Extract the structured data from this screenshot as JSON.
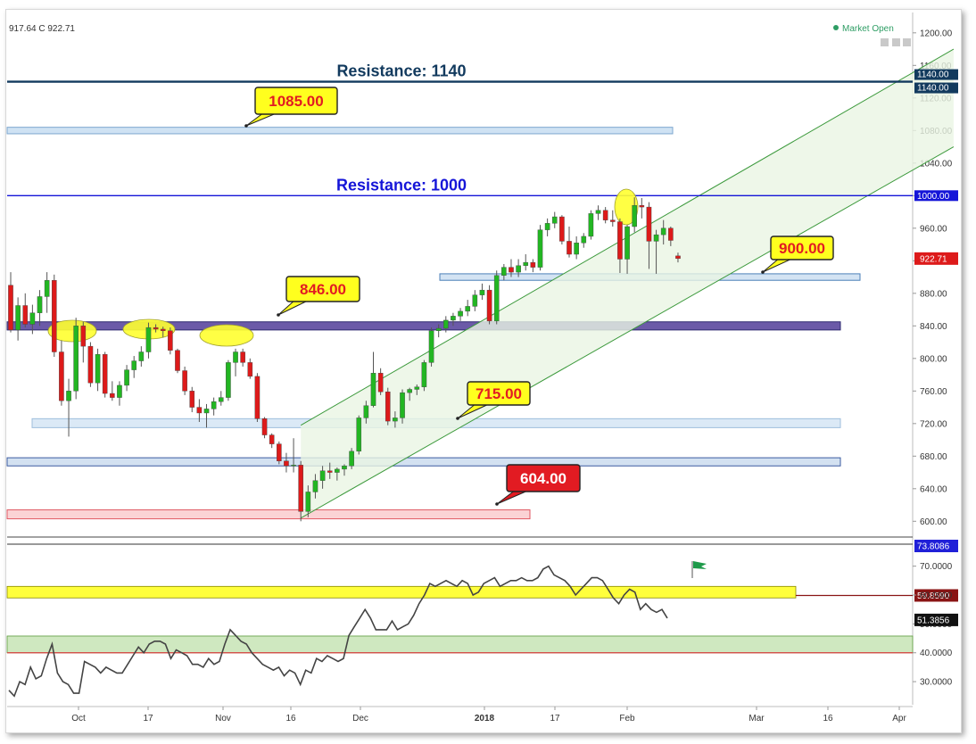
{
  "header": {
    "ohlc_text": "917.64 C 922.71",
    "market_status": "Market Open"
  },
  "colors": {
    "up": "#22b622",
    "down": "#dd1a1a",
    "resistance_1140": "#123a5e",
    "resistance_1000": "#1515d8",
    "channel": "#3d9a3d",
    "rsi_line": "#444444"
  },
  "chart_data": [
    {
      "type": "candlestick",
      "title": "",
      "price_axis": {
        "ticks": [
          "1200.00",
          "1160.00",
          "1120.00",
          "1080.00",
          "1040.00",
          "1000.00",
          "960.00",
          "920.00",
          "880.00",
          "840.00",
          "800.00",
          "760.00",
          "720.00",
          "680.00",
          "640.00",
          "600.00"
        ],
        "range": [
          585,
          1225
        ]
      },
      "x_axis": {
        "ticks": [
          "Oct",
          "17",
          "Nov",
          "16",
          "Dec",
          "2018",
          "17",
          "Feb",
          "Mar",
          "16",
          "Apr"
        ],
        "bold_ticks": [
          "2018"
        ]
      },
      "candles": [
        {
          "o": 890,
          "h": 906,
          "l": 832,
          "c": 835
        },
        {
          "o": 835,
          "h": 875,
          "l": 822,
          "c": 865
        },
        {
          "o": 865,
          "h": 880,
          "l": 838,
          "c": 842
        },
        {
          "o": 842,
          "h": 866,
          "l": 830,
          "c": 856
        },
        {
          "o": 856,
          "h": 884,
          "l": 840,
          "c": 876
        },
        {
          "o": 876,
          "h": 906,
          "l": 856,
          "c": 896
        },
        {
          "o": 896,
          "h": 903,
          "l": 802,
          "c": 808
        },
        {
          "o": 808,
          "h": 822,
          "l": 742,
          "c": 748
        },
        {
          "o": 748,
          "h": 775,
          "l": 704,
          "c": 760
        },
        {
          "o": 760,
          "h": 850,
          "l": 750,
          "c": 840
        },
        {
          "o": 840,
          "h": 845,
          "l": 795,
          "c": 815
        },
        {
          "o": 815,
          "h": 820,
          "l": 765,
          "c": 770
        },
        {
          "o": 770,
          "h": 812,
          "l": 760,
          "c": 805
        },
        {
          "o": 805,
          "h": 808,
          "l": 752,
          "c": 757
        },
        {
          "o": 757,
          "h": 772,
          "l": 748,
          "c": 752
        },
        {
          "o": 752,
          "h": 772,
          "l": 742,
          "c": 767
        },
        {
          "o": 767,
          "h": 792,
          "l": 760,
          "c": 786
        },
        {
          "o": 786,
          "h": 803,
          "l": 776,
          "c": 797
        },
        {
          "o": 797,
          "h": 815,
          "l": 790,
          "c": 808
        },
        {
          "o": 808,
          "h": 844,
          "l": 800,
          "c": 838
        },
        {
          "o": 838,
          "h": 842,
          "l": 832,
          "c": 836
        },
        {
          "o": 836,
          "h": 839,
          "l": 826,
          "c": 834
        },
        {
          "o": 834,
          "h": 838,
          "l": 805,
          "c": 810
        },
        {
          "o": 810,
          "h": 812,
          "l": 782,
          "c": 785
        },
        {
          "o": 785,
          "h": 790,
          "l": 755,
          "c": 760
        },
        {
          "o": 760,
          "h": 765,
          "l": 734,
          "c": 740
        },
        {
          "o": 740,
          "h": 750,
          "l": 722,
          "c": 733
        },
        {
          "o": 733,
          "h": 744,
          "l": 715,
          "c": 738
        },
        {
          "o": 738,
          "h": 752,
          "l": 730,
          "c": 747
        },
        {
          "o": 747,
          "h": 760,
          "l": 742,
          "c": 752
        },
        {
          "o": 752,
          "h": 798,
          "l": 748,
          "c": 795
        },
        {
          "o": 795,
          "h": 812,
          "l": 778,
          "c": 808
        },
        {
          "o": 808,
          "h": 812,
          "l": 790,
          "c": 795
        },
        {
          "o": 795,
          "h": 800,
          "l": 775,
          "c": 778
        },
        {
          "o": 778,
          "h": 782,
          "l": 722,
          "c": 726
        },
        {
          "o": 726,
          "h": 728,
          "l": 702,
          "c": 706
        },
        {
          "o": 706,
          "h": 708,
          "l": 690,
          "c": 695
        },
        {
          "o": 695,
          "h": 698,
          "l": 670,
          "c": 674
        },
        {
          "o": 674,
          "h": 684,
          "l": 660,
          "c": 668
        },
        {
          "o": 668,
          "h": 702,
          "l": 660,
          "c": 669
        },
        {
          "o": 669,
          "h": 674,
          "l": 600,
          "c": 612
        },
        {
          "o": 612,
          "h": 644,
          "l": 605,
          "c": 636
        },
        {
          "o": 636,
          "h": 658,
          "l": 628,
          "c": 650
        },
        {
          "o": 650,
          "h": 668,
          "l": 640,
          "c": 662
        },
        {
          "o": 662,
          "h": 672,
          "l": 652,
          "c": 660
        },
        {
          "o": 660,
          "h": 666,
          "l": 650,
          "c": 664
        },
        {
          "o": 664,
          "h": 670,
          "l": 656,
          "c": 668
        },
        {
          "o": 668,
          "h": 690,
          "l": 664,
          "c": 686
        },
        {
          "o": 686,
          "h": 730,
          "l": 682,
          "c": 727
        },
        {
          "o": 727,
          "h": 748,
          "l": 720,
          "c": 742
        },
        {
          "o": 742,
          "h": 808,
          "l": 740,
          "c": 782
        },
        {
          "o": 782,
          "h": 788,
          "l": 755,
          "c": 759
        },
        {
          "o": 759,
          "h": 764,
          "l": 718,
          "c": 723
        },
        {
          "o": 723,
          "h": 735,
          "l": 715,
          "c": 727
        },
        {
          "o": 727,
          "h": 762,
          "l": 720,
          "c": 758
        },
        {
          "o": 758,
          "h": 764,
          "l": 748,
          "c": 762
        },
        {
          "o": 762,
          "h": 768,
          "l": 755,
          "c": 765
        },
        {
          "o": 765,
          "h": 798,
          "l": 760,
          "c": 795
        },
        {
          "o": 795,
          "h": 838,
          "l": 790,
          "c": 834
        },
        {
          "o": 834,
          "h": 842,
          "l": 826,
          "c": 837
        },
        {
          "o": 837,
          "h": 852,
          "l": 832,
          "c": 847
        },
        {
          "o": 847,
          "h": 856,
          "l": 840,
          "c": 852
        },
        {
          "o": 852,
          "h": 862,
          "l": 846,
          "c": 858
        },
        {
          "o": 858,
          "h": 872,
          "l": 852,
          "c": 864
        },
        {
          "o": 864,
          "h": 884,
          "l": 858,
          "c": 878
        },
        {
          "o": 878,
          "h": 892,
          "l": 872,
          "c": 884
        },
        {
          "o": 884,
          "h": 890,
          "l": 842,
          "c": 846
        },
        {
          "o": 846,
          "h": 908,
          "l": 842,
          "c": 902
        },
        {
          "o": 902,
          "h": 916,
          "l": 896,
          "c": 912
        },
        {
          "o": 912,
          "h": 922,
          "l": 900,
          "c": 906
        },
        {
          "o": 906,
          "h": 922,
          "l": 900,
          "c": 914
        },
        {
          "o": 914,
          "h": 928,
          "l": 908,
          "c": 918
        },
        {
          "o": 918,
          "h": 922,
          "l": 906,
          "c": 912
        },
        {
          "o": 912,
          "h": 964,
          "l": 908,
          "c": 958
        },
        {
          "o": 958,
          "h": 972,
          "l": 950,
          "c": 966
        },
        {
          "o": 966,
          "h": 980,
          "l": 960,
          "c": 974
        },
        {
          "o": 974,
          "h": 976,
          "l": 940,
          "c": 944
        },
        {
          "o": 944,
          "h": 962,
          "l": 924,
          "c": 928
        },
        {
          "o": 928,
          "h": 950,
          "l": 922,
          "c": 942
        },
        {
          "o": 942,
          "h": 954,
          "l": 936,
          "c": 950
        },
        {
          "o": 950,
          "h": 982,
          "l": 946,
          "c": 978
        },
        {
          "o": 978,
          "h": 988,
          "l": 970,
          "c": 982
        },
        {
          "o": 982,
          "h": 986,
          "l": 966,
          "c": 970
        },
        {
          "o": 970,
          "h": 982,
          "l": 962,
          "c": 968
        },
        {
          "o": 968,
          "h": 972,
          "l": 905,
          "c": 922
        },
        {
          "o": 922,
          "h": 964,
          "l": 904,
          "c": 962
        },
        {
          "o": 962,
          "h": 998,
          "l": 955,
          "c": 988
        },
        {
          "o": 988,
          "h": 997,
          "l": 972,
          "c": 986
        },
        {
          "o": 986,
          "h": 992,
          "l": 910,
          "c": 944
        },
        {
          "o": 944,
          "h": 958,
          "l": 904,
          "c": 952
        },
        {
          "o": 952,
          "h": 970,
          "l": 940,
          "c": 960
        },
        {
          "o": 960,
          "h": 962,
          "l": 938,
          "c": 945
        },
        {
          "o": 926,
          "h": 930,
          "l": 918,
          "c": 922.71
        }
      ],
      "last_price": "922.71",
      "resistance_lines": [
        {
          "label": "Resistance: 1140",
          "value": 1140,
          "tags": [
            "1140.00",
            "1140.00"
          ]
        },
        {
          "label": "Resistance: 1000",
          "value": 1000,
          "tag": "1000.00"
        }
      ],
      "zones": [
        {
          "low": 1076,
          "high": 1084
        },
        {
          "low": 896,
          "high": 904
        },
        {
          "low": 835,
          "high": 845
        },
        {
          "low": 715,
          "high": 726
        },
        {
          "low": 668,
          "high": 678
        },
        {
          "low": 603,
          "high": 614
        }
      ],
      "callouts": [
        {
          "text": "1085.00",
          "theme": "yellow"
        },
        {
          "text": "900.00",
          "theme": "yellow"
        },
        {
          "text": "846.00",
          "theme": "yellow"
        },
        {
          "text": "715.00",
          "theme": "yellow"
        },
        {
          "text": "604.00",
          "theme": "red"
        }
      ],
      "channel": {
        "lower": [
          [
            40,
            604
          ],
          [
            130,
            1060
          ]
        ],
        "upper": [
          [
            40,
            718
          ],
          [
            130,
            1180
          ]
        ]
      }
    },
    {
      "type": "line",
      "title": "",
      "y_axis": {
        "ticks": [
          "70.0000",
          "60.0000",
          "50.0000",
          "40.0000",
          "30.0000"
        ],
        "range": [
          22,
          77
        ]
      },
      "tags": [
        "73.8086",
        "59.8590",
        "51.3856"
      ],
      "levels": [
        {
          "value": 59.859,
          "band": [
            59,
            63
          ],
          "color": "yellow"
        },
        {
          "value": 40,
          "band": [
            40,
            45.8
          ],
          "color": "green"
        }
      ],
      "values": [
        27,
        25,
        30,
        29,
        35,
        31,
        32,
        38,
        43,
        33,
        30,
        29,
        26,
        26,
        37,
        36,
        35,
        33,
        35,
        34,
        33,
        33,
        36,
        39,
        42,
        40,
        43,
        44,
        44,
        43,
        38,
        41,
        40,
        39,
        36,
        36,
        35,
        38,
        36,
        37,
        43,
        48,
        46,
        44,
        43,
        40,
        38,
        36,
        35,
        34,
        35,
        32,
        34,
        33,
        29,
        34,
        33,
        38,
        37,
        39,
        38,
        37,
        38,
        46,
        49,
        52,
        55,
        52,
        48,
        48,
        48,
        51,
        48,
        49,
        50,
        53,
        57,
        60,
        64,
        63,
        64,
        65,
        64,
        63,
        65,
        64,
        60,
        61,
        64,
        65,
        66,
        63,
        64,
        65,
        65,
        66,
        65,
        65,
        66,
        69,
        70,
        67,
        66,
        65,
        63,
        60,
        62,
        64,
        66,
        66,
        65,
        62,
        59,
        57,
        60,
        62,
        61,
        55,
        57,
        55,
        54,
        55,
        52
      ]
    }
  ]
}
